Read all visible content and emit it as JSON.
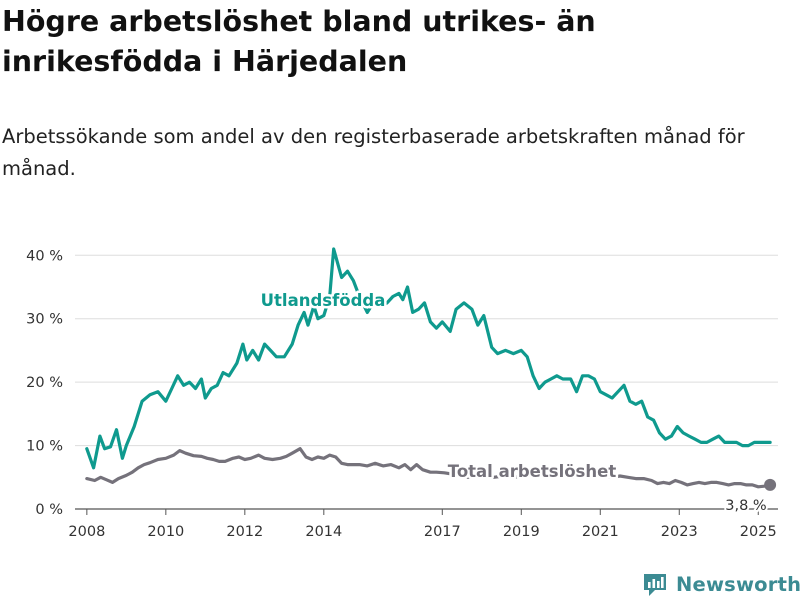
{
  "title": "Högre arbetslöshet bland utrikes- än inrikesfödda i Härjedalen",
  "subtitle": "Arbetssökande som andel av den registerbaserade arbetskraften månad för månad.",
  "brand": "Newsworthy",
  "colors": {
    "foreign": "#0f9a8e",
    "total": "#75727b",
    "grid": "#dddddd",
    "text": "#333333"
  },
  "chart_data": {
    "type": "line",
    "x_unit": "year",
    "xlim": [
      2007.7,
      2025.5
    ],
    "ylim": [
      0,
      42
    ],
    "yticks": [
      0,
      10,
      20,
      30,
      40
    ],
    "ytick_labels": [
      "0 %",
      "10 %",
      "20 %",
      "30 %",
      "40 %"
    ],
    "xticks": [
      2008,
      2010,
      2012,
      2014,
      2017,
      2019,
      2021,
      2023,
      2025
    ],
    "xtick_labels": [
      "2008",
      "2010",
      "2012",
      "2014",
      "2017",
      "2019",
      "2021",
      "2023",
      "2025"
    ],
    "grid": "horizontal",
    "series": [
      {
        "name": "Utlandsfödda",
        "color": "#0f9a8e",
        "points": [
          [
            2008.0,
            9.5
          ],
          [
            2008.17,
            6.5
          ],
          [
            2008.33,
            11.5
          ],
          [
            2008.45,
            9.5
          ],
          [
            2008.6,
            9.8
          ],
          [
            2008.75,
            12.5
          ],
          [
            2008.9,
            8.0
          ],
          [
            2009.0,
            10.0
          ],
          [
            2009.2,
            13.0
          ],
          [
            2009.4,
            17.0
          ],
          [
            2009.6,
            18.0
          ],
          [
            2009.8,
            18.5
          ],
          [
            2010.0,
            17.0
          ],
          [
            2010.15,
            19.0
          ],
          [
            2010.3,
            21.0
          ],
          [
            2010.45,
            19.5
          ],
          [
            2010.6,
            20.0
          ],
          [
            2010.75,
            19.0
          ],
          [
            2010.9,
            20.5
          ],
          [
            2011.0,
            17.5
          ],
          [
            2011.15,
            19.0
          ],
          [
            2011.3,
            19.5
          ],
          [
            2011.45,
            21.5
          ],
          [
            2011.6,
            21.0
          ],
          [
            2011.8,
            23.0
          ],
          [
            2011.95,
            26.0
          ],
          [
            2012.05,
            23.5
          ],
          [
            2012.2,
            25.0
          ],
          [
            2012.35,
            23.5
          ],
          [
            2012.5,
            26.0
          ],
          [
            2012.65,
            25.0
          ],
          [
            2012.8,
            24.0
          ],
          [
            2013.0,
            24.0
          ],
          [
            2013.2,
            26.0
          ],
          [
            2013.35,
            29.0
          ],
          [
            2013.5,
            31.0
          ],
          [
            2013.6,
            29.0
          ],
          [
            2013.75,
            32.0
          ],
          [
            2013.85,
            30.0
          ],
          [
            2014.0,
            30.5
          ],
          [
            2014.15,
            33.5
          ],
          [
            2014.25,
            41.0
          ],
          [
            2014.45,
            36.5
          ],
          [
            2014.6,
            37.5
          ],
          [
            2014.75,
            36.0
          ],
          [
            2014.9,
            33.5
          ],
          [
            2015.1,
            31.0
          ],
          [
            2015.25,
            32.5
          ],
          [
            2015.45,
            32.0
          ],
          [
            2015.6,
            32.5
          ],
          [
            2015.75,
            33.5
          ],
          [
            2015.9,
            34.0
          ],
          [
            2016.0,
            33.0
          ],
          [
            2016.12,
            35.0
          ],
          [
            2016.25,
            31.0
          ],
          [
            2016.4,
            31.5
          ],
          [
            2016.55,
            32.5
          ],
          [
            2016.7,
            29.5
          ],
          [
            2016.85,
            28.5
          ],
          [
            2017.0,
            29.5
          ],
          [
            2017.2,
            28.0
          ],
          [
            2017.35,
            31.5
          ],
          [
            2017.55,
            32.5
          ],
          [
            2017.75,
            31.5
          ],
          [
            2017.9,
            29.0
          ],
          [
            2018.05,
            30.5
          ],
          [
            2018.25,
            25.5
          ],
          [
            2018.4,
            24.5
          ],
          [
            2018.6,
            25.0
          ],
          [
            2018.8,
            24.5
          ],
          [
            2019.0,
            25.0
          ],
          [
            2019.15,
            24.0
          ],
          [
            2019.3,
            21.0
          ],
          [
            2019.45,
            19.0
          ],
          [
            2019.6,
            20.0
          ],
          [
            2019.75,
            20.5
          ],
          [
            2019.9,
            21.0
          ],
          [
            2020.05,
            20.5
          ],
          [
            2020.25,
            20.5
          ],
          [
            2020.4,
            18.5
          ],
          [
            2020.55,
            21.0
          ],
          [
            2020.7,
            21.0
          ],
          [
            2020.85,
            20.5
          ],
          [
            2021.0,
            18.5
          ],
          [
            2021.15,
            18.0
          ],
          [
            2021.3,
            17.5
          ],
          [
            2021.45,
            18.5
          ],
          [
            2021.6,
            19.5
          ],
          [
            2021.75,
            17.0
          ],
          [
            2021.9,
            16.5
          ],
          [
            2022.05,
            17.0
          ],
          [
            2022.2,
            14.5
          ],
          [
            2022.35,
            14.0
          ],
          [
            2022.5,
            12.0
          ],
          [
            2022.65,
            11.0
          ],
          [
            2022.8,
            11.5
          ],
          [
            2022.95,
            13.0
          ],
          [
            2023.1,
            12.0
          ],
          [
            2023.25,
            11.5
          ],
          [
            2023.4,
            11.0
          ],
          [
            2023.55,
            10.5
          ],
          [
            2023.7,
            10.5
          ],
          [
            2023.85,
            11.0
          ],
          [
            2024.0,
            11.5
          ],
          [
            2024.15,
            10.5
          ],
          [
            2024.3,
            10.5
          ],
          [
            2024.45,
            10.5
          ],
          [
            2024.6,
            10.0
          ],
          [
            2024.75,
            10.0
          ],
          [
            2024.9,
            10.5
          ],
          [
            2025.05,
            10.5
          ],
          [
            2025.2,
            10.5
          ],
          [
            2025.3,
            10.5
          ]
        ]
      },
      {
        "name": "Total arbetslöshet",
        "color": "#75727b",
        "points": [
          [
            2008.0,
            4.8
          ],
          [
            2008.2,
            4.5
          ],
          [
            2008.35,
            5.0
          ],
          [
            2008.5,
            4.6
          ],
          [
            2008.65,
            4.2
          ],
          [
            2008.8,
            4.8
          ],
          [
            2009.0,
            5.3
          ],
          [
            2009.15,
            5.8
          ],
          [
            2009.3,
            6.5
          ],
          [
            2009.45,
            7.0
          ],
          [
            2009.6,
            7.3
          ],
          [
            2009.8,
            7.8
          ],
          [
            2010.0,
            8.0
          ],
          [
            2010.2,
            8.5
          ],
          [
            2010.35,
            9.2
          ],
          [
            2010.5,
            8.8
          ],
          [
            2010.7,
            8.4
          ],
          [
            2010.9,
            8.3
          ],
          [
            2011.05,
            8.0
          ],
          [
            2011.2,
            7.8
          ],
          [
            2011.35,
            7.5
          ],
          [
            2011.5,
            7.5
          ],
          [
            2011.7,
            8.0
          ],
          [
            2011.85,
            8.2
          ],
          [
            2012.0,
            7.8
          ],
          [
            2012.15,
            8.0
          ],
          [
            2012.35,
            8.5
          ],
          [
            2012.5,
            8.0
          ],
          [
            2012.7,
            7.8
          ],
          [
            2012.9,
            8.0
          ],
          [
            2013.05,
            8.3
          ],
          [
            2013.2,
            8.8
          ],
          [
            2013.4,
            9.5
          ],
          [
            2013.55,
            8.2
          ],
          [
            2013.7,
            7.8
          ],
          [
            2013.85,
            8.2
          ],
          [
            2014.0,
            8.0
          ],
          [
            2014.15,
            8.5
          ],
          [
            2014.3,
            8.2
          ],
          [
            2014.45,
            7.2
          ],
          [
            2014.6,
            7.0
          ],
          [
            2014.75,
            7.0
          ],
          [
            2014.9,
            7.0
          ],
          [
            2015.1,
            6.8
          ],
          [
            2015.3,
            7.2
          ],
          [
            2015.5,
            6.8
          ],
          [
            2015.7,
            7.0
          ],
          [
            2015.9,
            6.5
          ],
          [
            2016.05,
            7.0
          ],
          [
            2016.2,
            6.2
          ],
          [
            2016.35,
            7.0
          ],
          [
            2016.5,
            6.2
          ],
          [
            2016.7,
            5.8
          ],
          [
            2016.85,
            5.8
          ],
          [
            2017.05,
            5.7
          ],
          [
            2017.25,
            5.5
          ],
          [
            2017.45,
            5.3
          ],
          [
            2017.65,
            5.0
          ],
          [
            2017.85,
            5.2
          ],
          [
            2018.05,
            5.0
          ],
          [
            2018.3,
            5.0
          ],
          [
            2018.55,
            5.2
          ],
          [
            2018.8,
            5.0
          ],
          [
            2019.05,
            5.2
          ],
          [
            2019.3,
            5.5
          ],
          [
            2019.55,
            5.3
          ],
          [
            2019.8,
            5.5
          ],
          [
            2020.05,
            5.2
          ],
          [
            2020.3,
            5.0
          ],
          [
            2020.5,
            6.0
          ],
          [
            2020.7,
            5.8
          ],
          [
            2020.9,
            5.5
          ],
          [
            2021.1,
            5.3
          ],
          [
            2021.3,
            5.0
          ],
          [
            2021.5,
            5.2
          ],
          [
            2021.7,
            5.0
          ],
          [
            2021.9,
            4.8
          ],
          [
            2022.1,
            4.8
          ],
          [
            2022.3,
            4.5
          ],
          [
            2022.45,
            4.0
          ],
          [
            2022.6,
            4.2
          ],
          [
            2022.75,
            4.0
          ],
          [
            2022.9,
            4.5
          ],
          [
            2023.05,
            4.2
          ],
          [
            2023.2,
            3.8
          ],
          [
            2023.35,
            4.0
          ],
          [
            2023.5,
            4.2
          ],
          [
            2023.65,
            4.0
          ],
          [
            2023.8,
            4.2
          ],
          [
            2023.95,
            4.2
          ],
          [
            2024.1,
            4.0
          ],
          [
            2024.25,
            3.8
          ],
          [
            2024.4,
            4.0
          ],
          [
            2024.55,
            4.0
          ],
          [
            2024.7,
            3.8
          ],
          [
            2024.85,
            3.8
          ],
          [
            2025.0,
            3.5
          ],
          [
            2025.15,
            3.6
          ],
          [
            2025.3,
            3.8
          ]
        ]
      }
    ],
    "annotations": {
      "foreign_label": "Utlandsfödda",
      "total_label": "Total arbetslöshet",
      "last_value_label": "3,8 %"
    }
  }
}
